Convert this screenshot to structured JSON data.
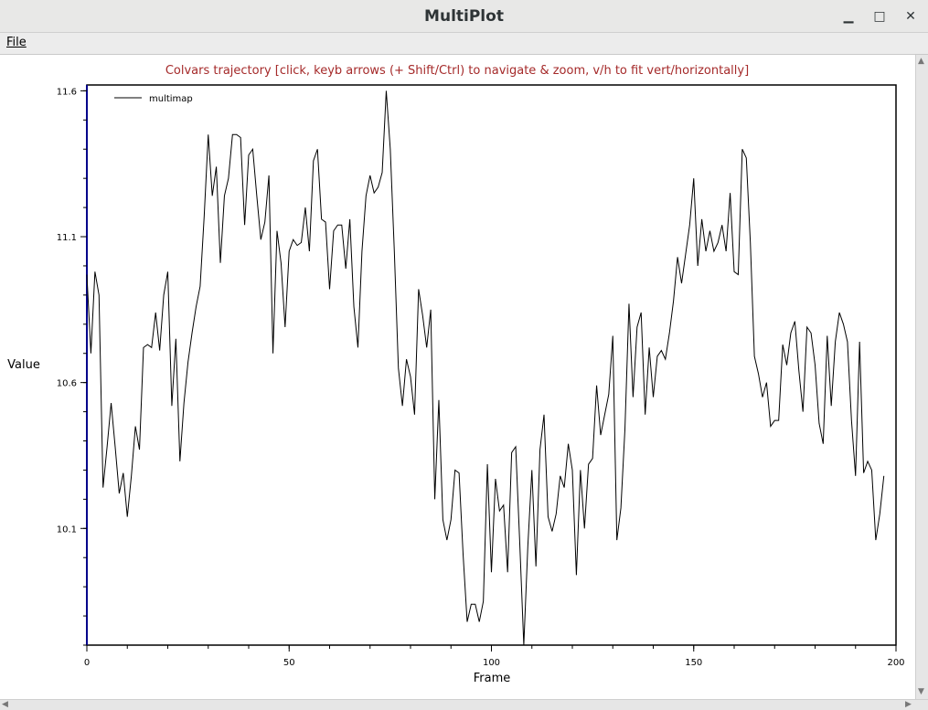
{
  "window": {
    "title": "MultiPlot",
    "minimize": "▁",
    "maximize": "□",
    "close": "✕"
  },
  "menu": {
    "file": "File"
  },
  "plot": {
    "header": "Colvars trajectory   [click, keyb arrows (+ Shift/Ctrl) to navigate & zoom, v/h to fit vert/horizontally]",
    "header_color": "#a52a2a",
    "ylabel": "Value",
    "xlabel": "Frame"
  },
  "chart_data": {
    "type": "line",
    "title": "Colvars trajectory",
    "xlabel": "Frame",
    "ylabel": "Value",
    "xlim": [
      0,
      200
    ],
    "ylim": [
      9.7,
      11.62
    ],
    "x_ticks": [
      0,
      50,
      100,
      150,
      200
    ],
    "y_ticks": [
      10.1,
      10.6,
      11.1,
      11.6
    ],
    "y_tick_labels": [
      "10.1",
      "10.6",
      "11.1",
      "11.6"
    ],
    "x_tick_labels": [
      "0",
      "50",
      "100",
      "150",
      "200"
    ],
    "legend": "top-left",
    "grid": false,
    "series": [
      {
        "name": "multimap",
        "color": "#000000",
        "values": [
          10.97,
          10.7,
          10.98,
          10.9,
          10.24,
          10.38,
          10.53,
          10.38,
          10.22,
          10.29,
          10.14,
          10.28,
          10.45,
          10.37,
          10.72,
          10.73,
          10.72,
          10.84,
          10.71,
          10.9,
          10.98,
          10.52,
          10.75,
          10.33,
          10.53,
          10.67,
          10.77,
          10.86,
          10.93,
          11.17,
          11.45,
          11.24,
          11.34,
          11.01,
          11.24,
          11.3,
          11.45,
          11.45,
          11.44,
          11.14,
          11.38,
          11.4,
          11.24,
          11.09,
          11.15,
          11.31,
          10.7,
          11.12,
          11.01,
          10.79,
          11.05,
          11.09,
          11.07,
          11.08,
          11.2,
          11.05,
          11.36,
          11.4,
          11.16,
          11.15,
          10.92,
          11.12,
          11.14,
          11.14,
          10.99,
          11.16,
          10.86,
          10.72,
          11.05,
          11.24,
          11.31,
          11.25,
          11.27,
          11.32,
          11.6,
          11.4,
          11.05,
          10.65,
          10.52,
          10.68,
          10.62,
          10.49,
          10.92,
          10.83,
          10.72,
          10.85,
          10.2,
          10.54,
          10.13,
          10.06,
          10.13,
          10.3,
          10.29,
          10.01,
          9.78,
          9.84,
          9.84,
          9.78,
          9.85,
          10.32,
          9.95,
          10.27,
          10.16,
          10.18,
          9.95,
          10.36,
          10.38,
          10.05,
          9.7,
          10.04,
          10.3,
          9.97,
          10.37,
          10.49,
          10.14,
          10.09,
          10.15,
          10.28,
          10.24,
          10.39,
          10.3,
          9.94,
          10.3,
          10.1,
          10.32,
          10.34,
          10.59,
          10.42,
          10.49,
          10.56,
          10.76,
          10.06,
          10.17,
          10.44,
          10.87,
          10.55,
          10.79,
          10.84,
          10.49,
          10.72,
          10.55,
          10.69,
          10.71,
          10.68,
          10.77,
          10.88,
          11.03,
          10.94,
          11.04,
          11.14,
          11.3,
          11.0,
          11.16,
          11.05,
          11.12,
          11.05,
          11.08,
          11.14,
          11.05,
          11.25,
          10.98,
          10.97,
          11.4,
          11.37,
          11.08,
          10.69,
          10.63,
          10.55,
          10.6,
          10.45,
          10.47,
          10.47,
          10.73,
          10.66,
          10.77,
          10.81,
          10.64,
          10.5,
          10.79,
          10.77,
          10.66,
          10.46,
          10.39,
          10.76,
          10.52,
          10.74,
          10.84,
          10.8,
          10.74,
          10.47,
          10.28,
          10.74,
          10.29,
          10.33,
          10.3,
          10.06,
          10.15,
          10.28
        ]
      }
    ]
  }
}
